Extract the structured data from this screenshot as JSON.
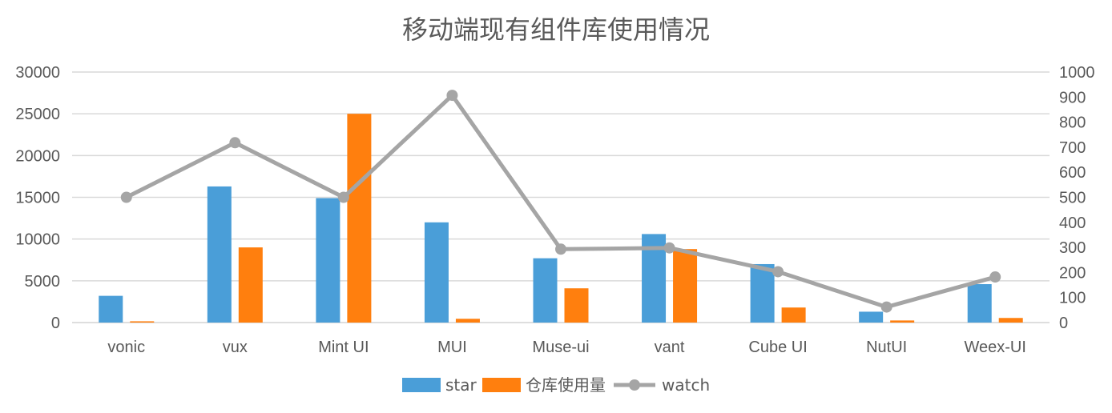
{
  "chart_data": {
    "type": "bar",
    "title": "移动端现有组件库使用情况",
    "categories": [
      "vonic",
      "vux",
      "Mint UI",
      "MUI",
      "Muse-ui",
      "vant",
      "Cube UI",
      "NutUI",
      "Weex-UI"
    ],
    "series": [
      {
        "name": "star",
        "type": "bar",
        "axis": "left",
        "color": "#4a9ed8",
        "values": [
          3200,
          16300,
          14900,
          12000,
          7700,
          10600,
          7000,
          1300,
          4600
        ]
      },
      {
        "name": "仓库使用量",
        "type": "bar",
        "axis": "left",
        "color": "#ff7f0e",
        "values": [
          150,
          9000,
          25000,
          450,
          4100,
          8800,
          1800,
          250,
          550
        ]
      },
      {
        "name": "watch",
        "type": "line",
        "axis": "right",
        "color": "#a5a5a5",
        "values": [
          500,
          718,
          500,
          907,
          293,
          298,
          203,
          62,
          182
        ]
      }
    ],
    "ylim": [
      0,
      30000
    ],
    "yticks": [
      "0",
      "5000",
      "10000",
      "15000",
      "20000",
      "25000",
      "30000"
    ],
    "y2lim": [
      0,
      1000
    ],
    "y2ticks": [
      "0",
      "100",
      "200",
      "300",
      "400",
      "500",
      "600",
      "700",
      "800",
      "900",
      "1000"
    ],
    "grid": true,
    "legend_position": "bottom"
  }
}
